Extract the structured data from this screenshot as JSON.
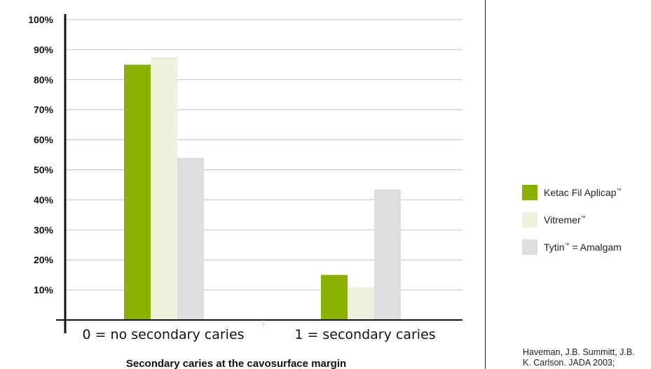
{
  "chart_data": {
    "type": "bar",
    "categories": [
      "0 = no secondary caries",
      "1 = secondary caries"
    ],
    "series": [
      {
        "name": "Ketac Fil Aplicap™",
        "color": "#8cb000",
        "values": [
          85,
          15
        ]
      },
      {
        "name": "Vitremer™",
        "color": "#eef1dc",
        "values": [
          87.5,
          11
        ]
      },
      {
        "name": "Tytin™ = Amalgam",
        "color": "#dedede",
        "values": [
          54,
          43.5
        ]
      }
    ],
    "ylim": [
      0,
      100
    ],
    "yticks": [
      "10%",
      "20%",
      "30%",
      "40%",
      "50%",
      "60%",
      "70%",
      "80%",
      "90%",
      "100%"
    ],
    "xlabel": "Secondary caries at the cavosurface margin",
    "ylabel": "",
    "grid": true,
    "legend_position": "right"
  },
  "legend": [
    {
      "name": "Ketac Fil Aplicap",
      "mark": "™",
      "color": "#8cb000"
    },
    {
      "name": "Vitremer",
      "mark": "™",
      "color": "#eef1dc"
    },
    {
      "name": "Tytin",
      "mark": "™",
      "suffix": " = Amalgam",
      "color": "#dedede"
    }
  ],
  "citation": {
    "line1": "Haveman, J.B. Summitt, J.B.",
    "line2": "K. Carlson. JADA 2003;"
  }
}
